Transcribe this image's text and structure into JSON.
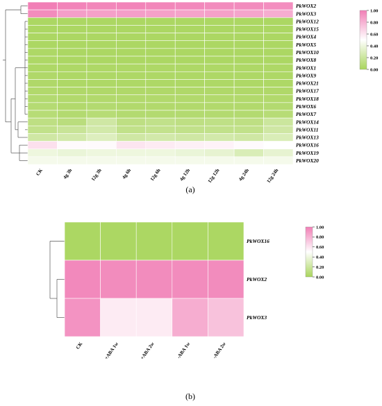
{
  "colors": {
    "low": "#a9d55c",
    "mid": "#ffffff",
    "high": "#f17fb6",
    "grid": "#ffffff"
  },
  "chart_data": [
    {
      "type": "heatmap",
      "panel_label": "(a)",
      "columns": [
        "CK",
        "4g 3h",
        "12g 3h",
        "4g 6h",
        "12g 6h",
        "4g 12h",
        "12g 12h",
        "4g 24h",
        "12g 24h"
      ],
      "rows": [
        "PkWOX2",
        "PkWOX3",
        "PkWOX12",
        "PkWOX15",
        "PkWOX4",
        "PkWOX5",
        "PkWOX10",
        "PkWOX8",
        "PkWOX1",
        "PkWOX9",
        "PkWOX21",
        "PkWOX17",
        "PkWOX18",
        "PkWOX6",
        "PkWOX7",
        "PkWOX14",
        "PkWOX11",
        "PkWOX13",
        "PkWOX16",
        "PkWOX19",
        "PkWOX20"
      ],
      "values": [
        [
          1.0,
          0.98,
          0.97,
          0.98,
          0.97,
          0.96,
          0.95,
          0.95,
          0.94
        ],
        [
          0.95,
          0.88,
          0.87,
          0.88,
          0.87,
          0.86,
          0.87,
          0.85,
          0.82
        ],
        [
          0.02,
          0.02,
          0.02,
          0.02,
          0.02,
          0.02,
          0.02,
          0.02,
          0.02
        ],
        [
          0.02,
          0.02,
          0.02,
          0.02,
          0.02,
          0.02,
          0.02,
          0.02,
          0.02
        ],
        [
          0.02,
          0.02,
          0.02,
          0.02,
          0.02,
          0.02,
          0.02,
          0.02,
          0.02
        ],
        [
          0.02,
          0.02,
          0.02,
          0.02,
          0.02,
          0.02,
          0.02,
          0.02,
          0.02
        ],
        [
          0.03,
          0.02,
          0.02,
          0.02,
          0.02,
          0.02,
          0.02,
          0.02,
          0.02
        ],
        [
          0.03,
          0.02,
          0.02,
          0.02,
          0.02,
          0.02,
          0.02,
          0.02,
          0.02
        ],
        [
          0.03,
          0.03,
          0.03,
          0.03,
          0.03,
          0.03,
          0.03,
          0.03,
          0.03
        ],
        [
          0.04,
          0.03,
          0.03,
          0.03,
          0.03,
          0.03,
          0.03,
          0.03,
          0.03
        ],
        [
          0.04,
          0.03,
          0.03,
          0.03,
          0.03,
          0.03,
          0.03,
          0.03,
          0.03
        ],
        [
          0.05,
          0.04,
          0.04,
          0.04,
          0.04,
          0.04,
          0.04,
          0.04,
          0.04
        ],
        [
          0.06,
          0.05,
          0.05,
          0.05,
          0.05,
          0.05,
          0.05,
          0.05,
          0.05
        ],
        [
          0.07,
          0.05,
          0.06,
          0.05,
          0.05,
          0.05,
          0.05,
          0.05,
          0.06
        ],
        [
          0.08,
          0.06,
          0.08,
          0.06,
          0.06,
          0.06,
          0.06,
          0.06,
          0.08
        ],
        [
          0.12,
          0.1,
          0.22,
          0.12,
          0.14,
          0.12,
          0.13,
          0.12,
          0.2
        ],
        [
          0.14,
          0.18,
          0.24,
          0.14,
          0.15,
          0.14,
          0.14,
          0.14,
          0.22
        ],
        [
          0.22,
          0.24,
          0.3,
          0.22,
          0.24,
          0.22,
          0.24,
          0.22,
          0.28
        ],
        [
          0.62,
          0.52,
          0.52,
          0.6,
          0.58,
          0.56,
          0.55,
          0.52,
          0.5
        ],
        [
          0.4,
          0.38,
          0.4,
          0.4,
          0.4,
          0.38,
          0.36,
          0.28,
          0.36
        ],
        [
          0.44,
          0.44,
          0.44,
          0.44,
          0.44,
          0.44,
          0.44,
          0.44,
          0.44
        ]
      ],
      "colorbar": {
        "min": 0,
        "max": 1,
        "ticks": [
          "1.00",
          "0.80",
          "0.60",
          "0.40",
          "0.20",
          "0.00"
        ]
      }
    },
    {
      "type": "heatmap",
      "panel_label": "(b)",
      "columns": [
        "CK",
        "+ABA 1w",
        "+ABA 2w",
        "-ABA 1w",
        "-ABA 2w"
      ],
      "rows": [
        "PkWOX16",
        "PkWOX2",
        "PkWOX3"
      ],
      "values": [
        [
          0.02,
          0.02,
          0.02,
          0.02,
          0.02
        ],
        [
          0.96,
          0.95,
          0.95,
          0.95,
          0.95
        ],
        [
          0.92,
          0.58,
          0.58,
          0.82,
          0.74
        ]
      ],
      "colorbar": {
        "min": 0,
        "max": 1,
        "ticks": [
          "1.00",
          "0.80",
          "0.60",
          "0.40",
          "0.20",
          "0.00"
        ]
      }
    }
  ]
}
